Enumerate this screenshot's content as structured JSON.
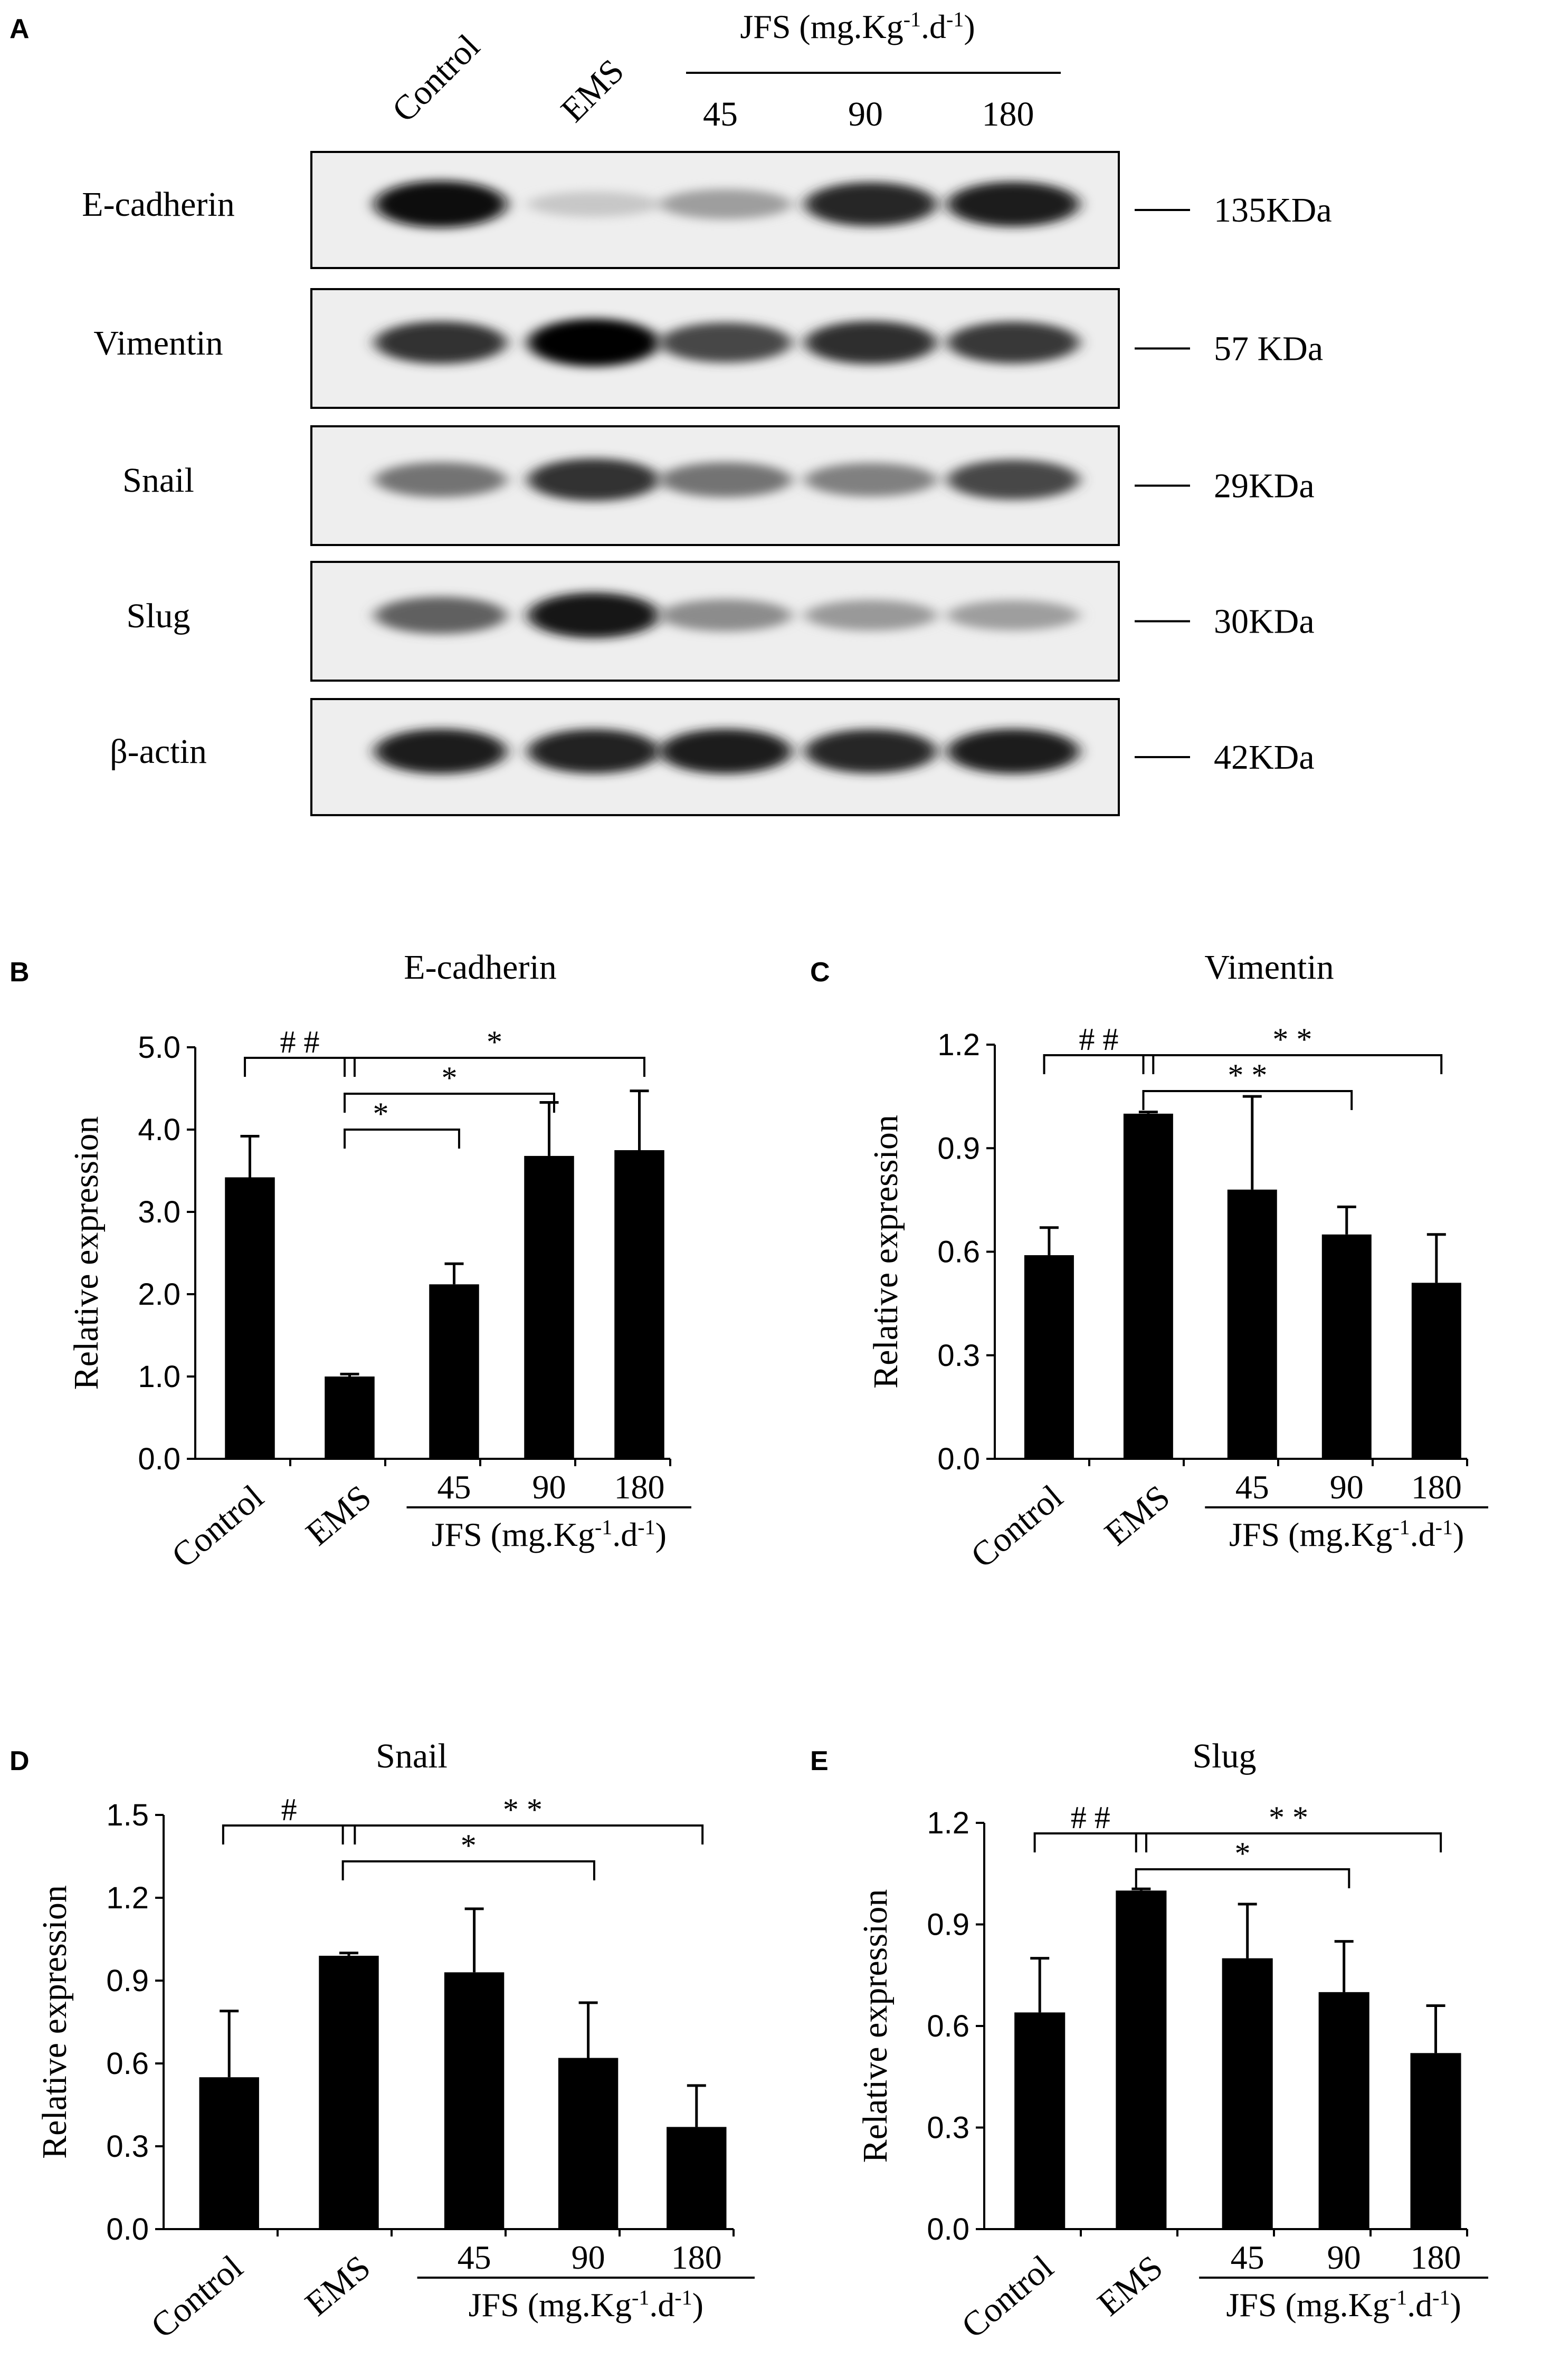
{
  "colors": {
    "bar": "#000000",
    "text": "#000000",
    "blot_bg": "#eeeeee"
  },
  "blot": {
    "panel_label": "A",
    "lane_labels": [
      "Control",
      "EMS"
    ],
    "group_label": "JFS (mg.Kg-1.d-1)",
    "dose_labels": [
      "45",
      "90",
      "180"
    ],
    "rows": [
      {
        "protein": "E-cadherin",
        "size": "135KDa",
        "intensity": [
          0.95,
          0.22,
          0.38,
          0.85,
          0.88
        ]
      },
      {
        "protein": "Vimentin",
        "size": "57 KDa",
        "intensity": [
          0.8,
          0.98,
          0.72,
          0.82,
          0.78
        ]
      },
      {
        "protein": "Snail",
        "size": "29KDa",
        "intensity": [
          0.55,
          0.8,
          0.55,
          0.5,
          0.72
        ]
      },
      {
        "protein": "Slug",
        "size": "30KDa",
        "intensity": [
          0.62,
          0.9,
          0.45,
          0.4,
          0.38
        ]
      },
      {
        "protein": "β-actin",
        "size": "42KDa",
        "intensity": [
          0.88,
          0.86,
          0.88,
          0.85,
          0.88
        ]
      }
    ]
  },
  "chart_data": [
    {
      "panel_label": "B",
      "type": "bar",
      "title": "E-cadherin",
      "ylabel": "Relative expression",
      "categories": [
        "Control",
        "EMS",
        "45",
        "90",
        "180"
      ],
      "values": [
        3.42,
        1.0,
        2.12,
        3.68,
        3.75
      ],
      "errors": [
        0.5,
        0.03,
        0.25,
        0.65,
        0.72
      ],
      "ylim": [
        0,
        5.0
      ],
      "yticks": [
        "0.0",
        "1.0",
        "2.0",
        "3.0",
        "4.0",
        "5.0"
      ],
      "group_label": "JFS (mg.Kg-1.d-1)",
      "significance": [
        {
          "from": 0,
          "to": 1,
          "label": "##"
        },
        {
          "from": 1,
          "to": 2,
          "label": "*"
        },
        {
          "from": 1,
          "to": 3,
          "label": "*"
        },
        {
          "from": 1,
          "to": 4,
          "label": "*"
        }
      ]
    },
    {
      "panel_label": "C",
      "type": "bar",
      "title": "Vimentin",
      "ylabel": "Relative expression",
      "categories": [
        "Control",
        "EMS",
        "45",
        "90",
        "180"
      ],
      "values": [
        0.59,
        1.0,
        0.78,
        0.65,
        0.51
      ],
      "errors": [
        0.08,
        0.005,
        0.27,
        0.08,
        0.14
      ],
      "ylim": [
        0,
        1.2
      ],
      "yticks": [
        "0.0",
        "0.3",
        "0.6",
        "0.9",
        "1.2"
      ],
      "group_label": "JFS (mg.Kg-1.d-1)",
      "significance": [
        {
          "from": 0,
          "to": 1,
          "label": "##"
        },
        {
          "from": 1,
          "to": 3,
          "label": "**"
        },
        {
          "from": 1,
          "to": 4,
          "label": "**"
        }
      ]
    },
    {
      "panel_label": "D",
      "type": "bar",
      "title": "Snail",
      "ylabel": "Relative expression",
      "categories": [
        "Control",
        "EMS",
        "45",
        "90",
        "180"
      ],
      "values": [
        0.55,
        0.99,
        0.93,
        0.62,
        0.37
      ],
      "errors": [
        0.24,
        0.01,
        0.23,
        0.2,
        0.15
      ],
      "ylim": [
        0,
        1.5
      ],
      "yticks": [
        "0.0",
        "0.3",
        "0.6",
        "0.9",
        "1.2",
        "1.5"
      ],
      "group_label": "JFS (mg.Kg-1.d-1)",
      "significance": [
        {
          "from": 0,
          "to": 1,
          "label": "#"
        },
        {
          "from": 1,
          "to": 3,
          "label": "*"
        },
        {
          "from": 1,
          "to": 4,
          "label": "**"
        }
      ]
    },
    {
      "panel_label": "E",
      "type": "bar",
      "title": "Slug",
      "ylabel": "Relative expression",
      "categories": [
        "Control",
        "EMS",
        "45",
        "90",
        "180"
      ],
      "values": [
        0.64,
        1.0,
        0.8,
        0.7,
        0.52
      ],
      "errors": [
        0.16,
        0.005,
        0.16,
        0.15,
        0.14
      ],
      "ylim": [
        0,
        1.2
      ],
      "yticks": [
        "0.0",
        "0.3",
        "0.6",
        "0.9",
        "1.2"
      ],
      "group_label": "JFS (mg.Kg-1.d-1)",
      "significance": [
        {
          "from": 0,
          "to": 1,
          "label": "##"
        },
        {
          "from": 1,
          "to": 3,
          "label": "*"
        },
        {
          "from": 1,
          "to": 4,
          "label": "**"
        }
      ]
    }
  ]
}
